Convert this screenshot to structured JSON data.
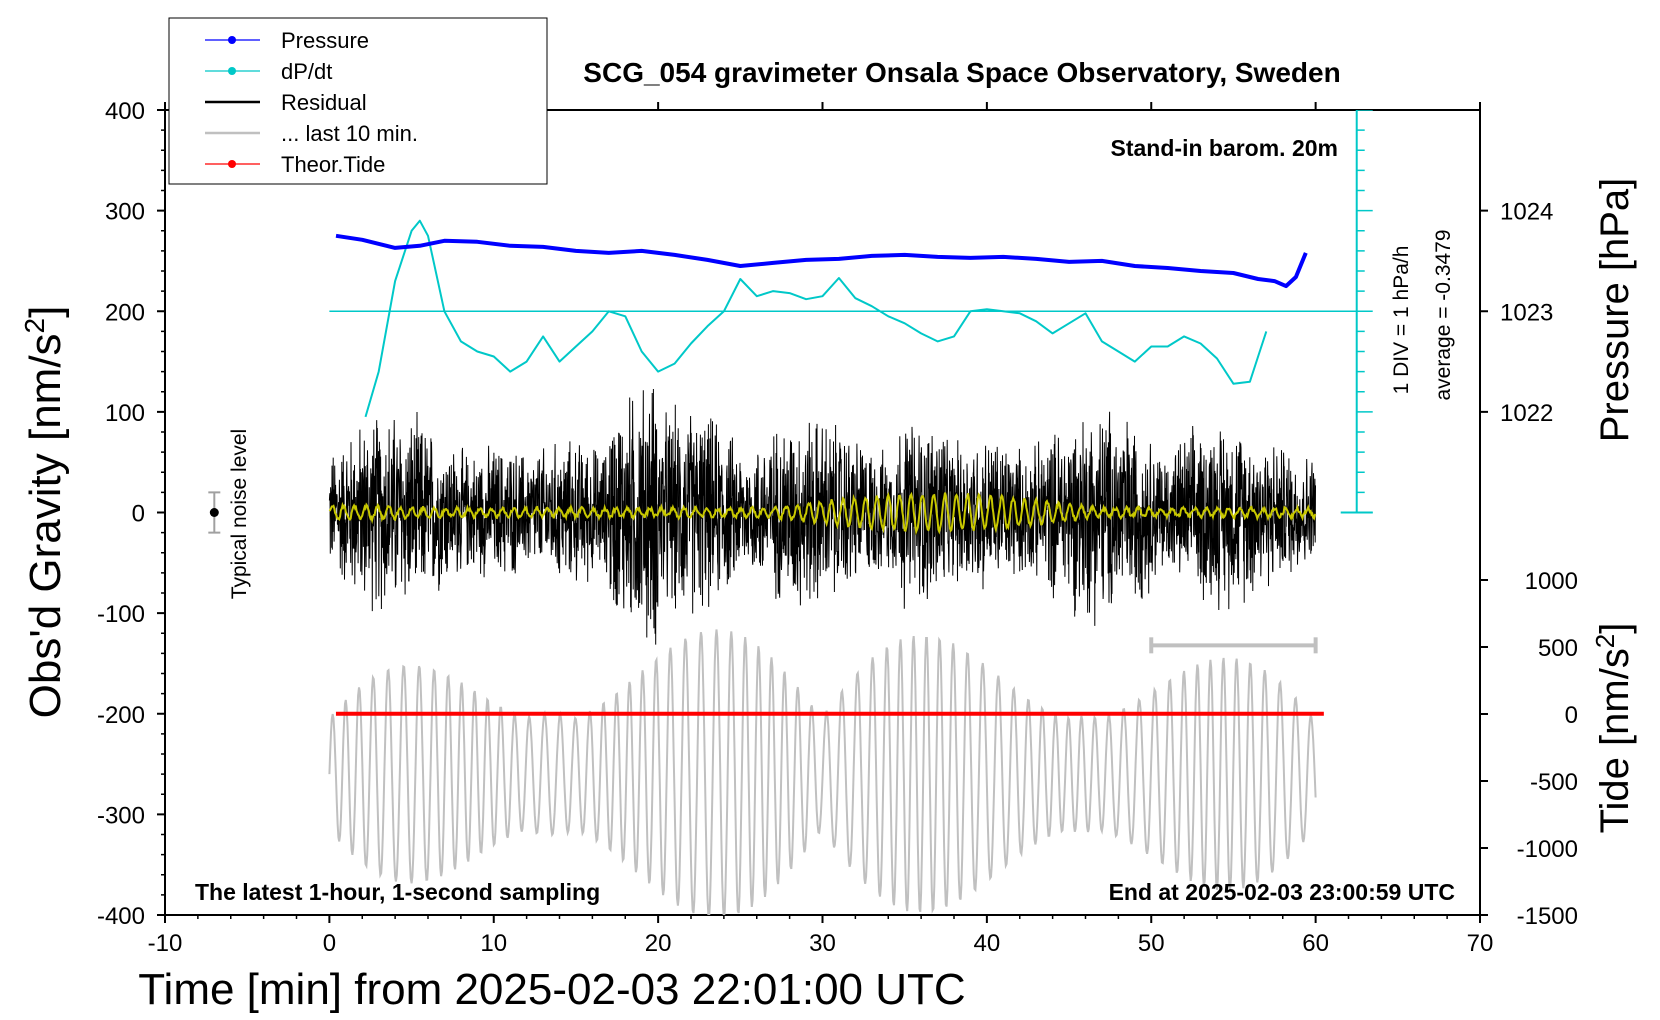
{
  "chart_data": {
    "type": "line",
    "title": "SCG_054 gravimeter Onsala Space Observatory, Sweden",
    "xlabel": "Time [min] from 2025-02-03 22:01:00 UTC",
    "ylabel_left_prefix": "Obs'd Gravity [nm/s",
    "ylabel_left_suffix": "]",
    "ylabel_pressure": "Pressure [hPa]",
    "ylabel_tide_prefix": "Tide [nm/s",
    "ylabel_tide_suffix": "]",
    "superscript": "2",
    "xlim": [
      -10,
      70
    ],
    "ylim": [
      -400,
      400
    ],
    "x_ticks": [
      "-10",
      "0",
      "10",
      "20",
      "30",
      "40",
      "50",
      "60",
      "70"
    ],
    "y_ticks": [
      "400",
      "300",
      "200",
      "100",
      "0",
      "-100",
      "-200",
      "-300",
      "-400"
    ],
    "pressure_axis": {
      "ticks": [
        "1024",
        "1023",
        "1022"
      ],
      "values": [
        1024,
        1023,
        1022
      ],
      "ref_value": 1023,
      "ref_gravity": 200,
      "scale_nm_per_hPa": 100
    },
    "tide_axis": {
      "ticks": [
        "1000",
        "500",
        "0",
        "-500",
        "-1000",
        "-1500"
      ],
      "values": [
        1000,
        500,
        0,
        -500,
        -1000,
        -1500
      ],
      "range": [
        -1500,
        1000
      ],
      "zero_gravity": -200
    },
    "legend": [
      {
        "label": "Pressure",
        "color": "#0000ff"
      },
      {
        "label": "dP/dt",
        "color": "#00c8c8"
      },
      {
        "label": "Residual",
        "color": "#000000"
      },
      {
        "label": "... last 10 min.",
        "color": "#c0c0c0"
      },
      {
        "label": "Theor.Tide",
        "color": "#ff0000"
      }
    ],
    "annotations": {
      "barometer": "Stand-in barom. 20m",
      "div_note": "1 DIV = 1 hPa/h",
      "average_note": "average = -0.3479",
      "noise_label": "Typical noise level",
      "window_note": "The latest 1-hour, 1-second sampling",
      "end_note": "End at 2025-02-03 23:00:59 UTC"
    },
    "series": [
      {
        "name": "Pressure",
        "color": "#0000ff",
        "unit": "hPa",
        "x": [
          0.4,
          2,
          4,
          5.5,
          7,
          9,
          11,
          13,
          15,
          17,
          19,
          21,
          23,
          25,
          27,
          29,
          31,
          33,
          35,
          37,
          39,
          41,
          43,
          45,
          47,
          49,
          51,
          53,
          55,
          56.5,
          57.5,
          58.2,
          58.8,
          59.4
        ],
        "values": [
          1023.75,
          1023.71,
          1023.63,
          1023.65,
          1023.7,
          1023.69,
          1023.65,
          1023.64,
          1023.6,
          1023.58,
          1023.6,
          1023.56,
          1023.51,
          1023.45,
          1023.48,
          1023.51,
          1023.52,
          1023.55,
          1023.56,
          1023.54,
          1023.53,
          1023.54,
          1023.52,
          1023.49,
          1023.5,
          1023.45,
          1023.43,
          1023.4,
          1023.38,
          1023.32,
          1023.3,
          1023.25,
          1023.34,
          1023.58
        ]
      },
      {
        "name": "dP/dt",
        "color": "#00c8c8",
        "unit": "nm/s2 (plot)",
        "x": [
          2.2,
          3,
          4,
          5,
          5.5,
          6,
          7,
          8,
          9,
          10,
          11,
          12,
          13,
          14,
          15,
          16,
          17,
          18,
          19,
          20,
          21,
          22,
          23,
          24,
          25,
          26,
          27,
          28,
          29,
          30,
          31,
          32,
          33,
          34,
          35,
          36,
          37,
          38,
          39,
          40,
          41,
          42,
          43,
          44,
          45,
          46,
          47,
          48,
          49,
          50,
          51,
          52,
          53,
          54,
          55,
          56,
          56.5,
          57
        ],
        "values": [
          95,
          140,
          230,
          280,
          290,
          275,
          200,
          170,
          160,
          155,
          140,
          150,
          175,
          150,
          165,
          180,
          200,
          195,
          160,
          140,
          148,
          168,
          185,
          200,
          232,
          215,
          220,
          218,
          212,
          215,
          233,
          213,
          205,
          195,
          188,
          178,
          170,
          175,
          200,
          202,
          200,
          198,
          190,
          178,
          188,
          198,
          170,
          160,
          150,
          165,
          165,
          175,
          168,
          153,
          128,
          130,
          155,
          180
        ]
      },
      {
        "name": "Residual",
        "color": "#000000",
        "unit": "nm/s2",
        "x_start": 0,
        "x_end": 60,
        "amplitude_approx": 120,
        "center": 0
      },
      {
        "name": "... last 10 min.",
        "color": "#c0c0c0",
        "unit": "nm/s2",
        "x_start": 0,
        "x_end": 60,
        "amplitude_approx": 160,
        "center": -260
      },
      {
        "name": "Theor.Tide",
        "color": "#ff0000",
        "unit": "nm/s2",
        "x": [
          0.4,
          60.5
        ],
        "values": [
          -200,
          -200
        ]
      }
    ],
    "hline_dpdt_reference": 200,
    "last10_bracket_x": [
      50,
      60
    ],
    "noise_bar": {
      "x": -7,
      "center": 0,
      "half_range": 20
    }
  }
}
